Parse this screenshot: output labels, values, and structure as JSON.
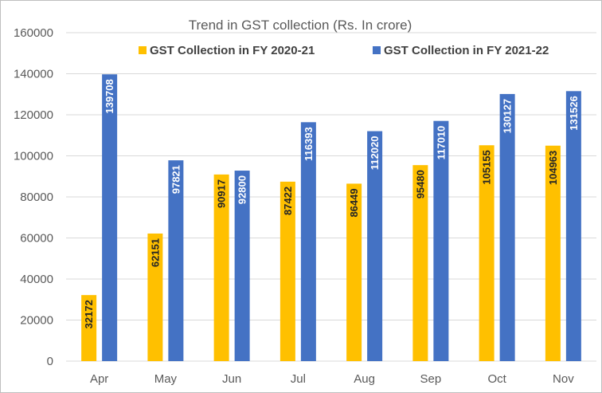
{
  "chart_data": {
    "type": "bar",
    "title": "Trend in GST collection (Rs. In crore)",
    "xlabel": "",
    "ylabel": "",
    "categories": [
      "Apr",
      "May",
      "Jun",
      "Jul",
      "Aug",
      "Sep",
      "Oct",
      "Nov"
    ],
    "series": [
      {
        "name": "GST Collection in FY 2020-21",
        "color": "#FFC000",
        "label_color": "#262626",
        "values": [
          32172,
          62151,
          90917,
          87422,
          86449,
          95480,
          105155,
          104963
        ]
      },
      {
        "name": "GST Collection in FY 2021-22",
        "color": "#4472C4",
        "label_color": "#ffffff",
        "values": [
          139708,
          97821,
          92800,
          116393,
          112020,
          117010,
          130127,
          131526
        ]
      }
    ],
    "ylim": [
      0,
      160000
    ],
    "yticks": [
      0,
      20000,
      40000,
      60000,
      80000,
      100000,
      120000,
      140000,
      160000
    ],
    "grid": true,
    "gridline_color": "#d9d9d9",
    "legend_position": "top",
    "data_labels": "inside-rotated"
  }
}
